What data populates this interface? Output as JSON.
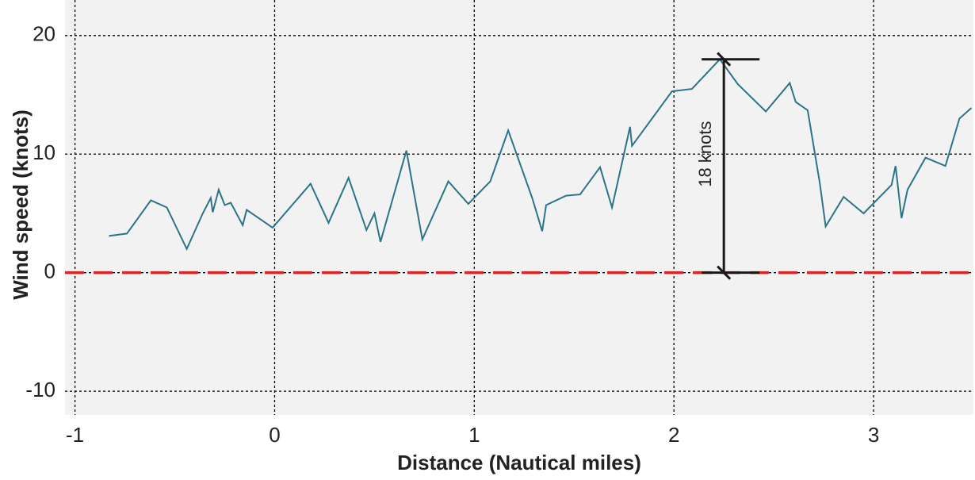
{
  "chart_data": {
    "type": "line",
    "xlabel": "Distance (Nautical miles)",
    "ylabel": "Wind speed (knots)",
    "xlim": [
      -1.05,
      3.5
    ],
    "xticks": [
      -1,
      0,
      1,
      2,
      3
    ],
    "ylim": [
      -12,
      23
    ],
    "yticks": [
      -10,
      0,
      10,
      20
    ],
    "grid": true,
    "series": [
      {
        "color": "#2a7585",
        "x": [
          -0.83,
          -0.74,
          -0.62,
          -0.54,
          -0.44,
          -0.36,
          -0.32,
          -0.31,
          -0.28,
          -0.25,
          -0.22,
          -0.16,
          -0.14,
          -0.01,
          0.18,
          0.27,
          0.37,
          0.46,
          0.5,
          0.53,
          0.66,
          0.74,
          0.87,
          0.97,
          1.08,
          1.17,
          1.29,
          1.34,
          1.36,
          1.46,
          1.53,
          1.63,
          1.69,
          1.78,
          1.79,
          1.99,
          2.09,
          2.23,
          2.32,
          2.46,
          2.58,
          2.61,
          2.67,
          2.73,
          2.76,
          2.85,
          2.95,
          3.09,
          3.11,
          3.14,
          3.17,
          3.26,
          3.36,
          3.43,
          3.49
        ],
        "values": [
          3.1,
          3.3,
          6.1,
          5.5,
          2.0,
          5.0,
          6.3,
          5.1,
          7.0,
          5.7,
          5.9,
          4.0,
          5.3,
          3.8,
          7.5,
          4.2,
          8.0,
          3.6,
          5.0,
          2.6,
          10.3,
          2.8,
          7.7,
          5.8,
          7.7,
          12.0,
          6.3,
          3.5,
          5.7,
          6.5,
          6.6,
          8.9,
          5.5,
          12.3,
          10.7,
          15.3,
          15.5,
          18.0,
          15.9,
          13.6,
          16.0,
          14.4,
          13.7,
          7.6,
          3.9,
          6.4,
          5.0,
          7.4,
          9.0,
          4.6,
          7.0,
          9.7,
          9.0,
          13.0,
          13.9
        ]
      }
    ],
    "reference_line": {
      "value": 0,
      "color": "#d62728"
    },
    "annotation": {
      "text": "18 knots",
      "x": 2.25,
      "y_from": 0,
      "y_to": 18
    }
  }
}
